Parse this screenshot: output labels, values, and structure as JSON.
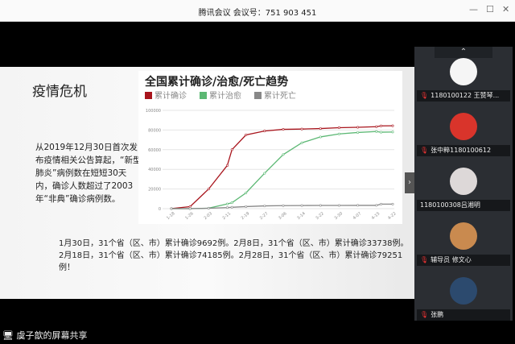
{
  "window": {
    "title": "腾讯会议 会议号：751 903 451",
    "minimize": "—",
    "maximize": "☐",
    "close": "✕"
  },
  "slide": {
    "title": "疫情危机",
    "paragraph": "从2019年12月30日首次发布疫情相关公告算起，“新型肺炎”病例数在短短30天内，确诊人数超过了2003年“非典”确诊病例数。",
    "bottom_text": "1月30日，31个省（区、市）累计确诊9692例。2月8日，31个省（区、市）累计确诊33738例。2月18日，31个省（区、市）累计确诊74185例。2月28日，31个省（区、市）累计确诊79251例！"
  },
  "chart_data": {
    "type": "line",
    "title": "全国累计确诊/治愈/死亡趋势",
    "legend_position": "top-left",
    "grid": true,
    "ylim": [
      0,
      100000
    ],
    "yticks": [
      "0",
      "20000",
      "40000",
      "60000",
      "80000",
      "100000"
    ],
    "xticks": [
      "1-18",
      "1-26",
      "2-03",
      "2-11",
      "2-19",
      "2-27",
      "3-06",
      "3-14",
      "3-22",
      "3-30",
      "4-07",
      "4-15",
      "4-22"
    ],
    "x": [
      "1-18",
      "1-26",
      "2-03",
      "2-11",
      "2-13",
      "2-19",
      "2-27",
      "3-06",
      "3-14",
      "3-22",
      "3-30",
      "4-07",
      "4-15",
      "4-17",
      "4-22"
    ],
    "series": [
      {
        "name": "累计确诊",
        "color": "#a8141c",
        "values": [
          100,
          2000,
          20000,
          44000,
          60000,
          75000,
          79000,
          80700,
          81000,
          81500,
          82400,
          82800,
          83400,
          84200,
          84300
        ]
      },
      {
        "name": "累计治愈",
        "color": "#5cb874",
        "values": [
          0,
          0,
          500,
          4800,
          6000,
          16000,
          36000,
          55000,
          67000,
          73000,
          76000,
          77500,
          78500,
          77800,
          78000
        ]
      },
      {
        "name": "累计死亡",
        "color": "#888888",
        "values": [
          0,
          50,
          400,
          1100,
          1400,
          2100,
          2800,
          3100,
          3200,
          3270,
          3300,
          3330,
          3340,
          4630,
          4640
        ]
      }
    ]
  },
  "participants": [
    {
      "name": "1180100122 王赞琴...",
      "muted": true,
      "avatar": "#f5f5f5"
    },
    {
      "name": "张中粹1180100612",
      "muted": true,
      "avatar": "#d9342b"
    },
    {
      "name": "1180100308吕湘明",
      "muted": false,
      "avatar": "#ddd8d8"
    },
    {
      "name": "辅导员 修文心",
      "muted": true,
      "avatar": "#c98a4f"
    },
    {
      "name": "张鹏",
      "muted": true,
      "avatar": "#2c4a6e"
    }
  ],
  "share": {
    "label": "虞子歆的屏幕共享"
  },
  "icons": {
    "scroll_up": "⌃",
    "muted_mic": "mic-off-icon",
    "expand": "›"
  }
}
